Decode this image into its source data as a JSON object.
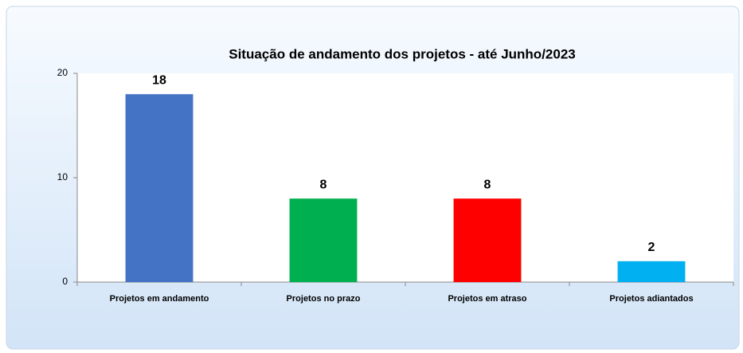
{
  "chart_data": {
    "type": "bar",
    "title": "Situação de andamento dos projetos - até Junho/2023",
    "categories": [
      "Projetos em andamento",
      "Projetos no prazo",
      "Projetos em atraso",
      "Projetos adiantados"
    ],
    "values": [
      18,
      8,
      8,
      2
    ],
    "colors": [
      "#4472c4",
      "#00b050",
      "#ff0000",
      "#00b0f0"
    ],
    "ylim": [
      0,
      20
    ],
    "yticks": [
      0,
      10,
      20
    ],
    "grid": false
  }
}
